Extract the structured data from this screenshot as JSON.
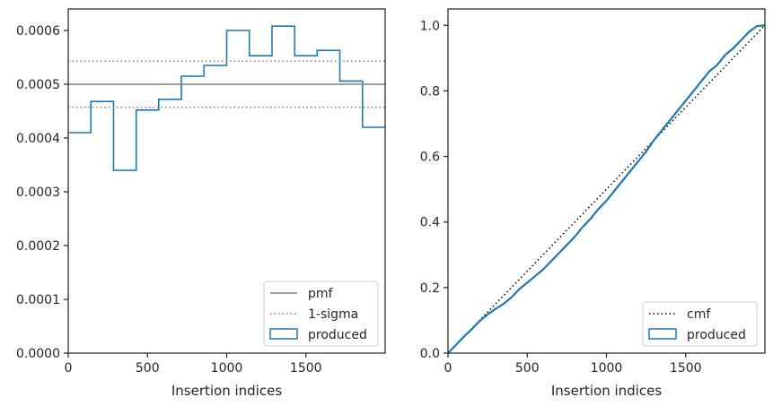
{
  "chart_data": [
    {
      "type": "histogram-step",
      "xlabel": "Insertion indices",
      "ylabel": "",
      "xlim": [
        0,
        2000
      ],
      "ylim": [
        0,
        0.00064
      ],
      "xticks": [
        0,
        500,
        1000,
        1500
      ],
      "yticks": [
        0,
        0.0001,
        0.0002,
        0.0003,
        0.0004,
        0.0005,
        0.0006
      ],
      "ytick_labels": [
        "0.0000",
        "0.0001",
        "0.0002",
        "0.0003",
        "0.0004",
        "0.0005",
        "0.0006"
      ],
      "bin_edges": [
        0,
        143,
        286,
        429,
        571,
        714,
        857,
        1000,
        1143,
        1286,
        1429,
        1571,
        1714,
        1857,
        2000
      ],
      "series": [
        {
          "name": "produced",
          "kind": "step",
          "color": "#1f77b4",
          "values": [
            0.00041,
            0.000468,
            0.00034,
            0.000452,
            0.000472,
            0.000515,
            0.000535,
            0.0006,
            0.000553,
            0.000608,
            0.000553,
            0.000563,
            0.000506,
            0.00042
          ]
        },
        {
          "name": "pmf",
          "kind": "hline",
          "color": "#808080",
          "y": 0.0005
        },
        {
          "name": "1-sigma",
          "kind": "hline-dotted",
          "color": "#808080",
          "y": [
            0.000457,
            0.000543
          ]
        }
      ],
      "legend": [
        "pmf",
        "1-sigma",
        "produced"
      ],
      "legend_position": "lower-right"
    },
    {
      "type": "line",
      "xlabel": "Insertion indices",
      "ylabel": "",
      "xlim": [
        0,
        2000
      ],
      "ylim": [
        0,
        1.05
      ],
      "xticks": [
        0,
        500,
        1000,
        1500
      ],
      "yticks": [
        0.0,
        0.2,
        0.4,
        0.6,
        0.8,
        1.0
      ],
      "ytick_labels": [
        "0.0",
        "0.2",
        "0.4",
        "0.6",
        "0.8",
        "1.0"
      ],
      "series": [
        {
          "name": "cmf",
          "kind": "dotted",
          "color": "#000000",
          "x": [
            0,
            2000
          ],
          "y": [
            0,
            1.0
          ]
        },
        {
          "name": "produced",
          "kind": "line",
          "color": "#1f77b4",
          "x": [
            0,
            50,
            100,
            150,
            200,
            250,
            300,
            350,
            400,
            450,
            500,
            550,
            600,
            650,
            700,
            750,
            800,
            850,
            900,
            950,
            1000,
            1050,
            1100,
            1150,
            1200,
            1250,
            1300,
            1350,
            1400,
            1450,
            1500,
            1550,
            1600,
            1650,
            1700,
            1750,
            1800,
            1850,
            1900,
            1950,
            2000
          ],
          "y": [
            0,
            0.025,
            0.05,
            0.073,
            0.098,
            0.118,
            0.135,
            0.15,
            0.17,
            0.195,
            0.215,
            0.235,
            0.255,
            0.28,
            0.305,
            0.33,
            0.355,
            0.385,
            0.41,
            0.44,
            0.465,
            0.495,
            0.525,
            0.555,
            0.585,
            0.615,
            0.65,
            0.68,
            0.71,
            0.74,
            0.77,
            0.8,
            0.83,
            0.86,
            0.88,
            0.91,
            0.93,
            0.955,
            0.98,
            0.998,
            1.0
          ]
        }
      ],
      "legend": [
        "cmf",
        "produced"
      ],
      "legend_position": "lower-right"
    }
  ]
}
